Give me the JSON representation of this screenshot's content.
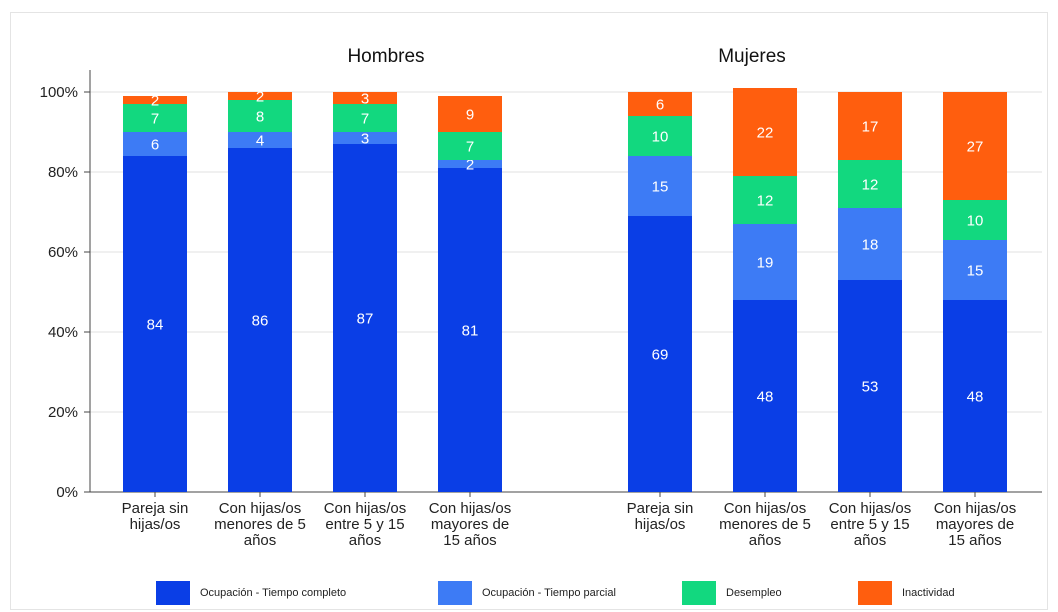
{
  "chart_data": {
    "type": "bar",
    "stacked": true,
    "percent": true,
    "ylim": [
      0,
      100
    ],
    "yticks": [
      "0%",
      "20%",
      "40%",
      "60%",
      "80%",
      "100%"
    ],
    "grid": true,
    "legend_position": "bottom",
    "panels": [
      {
        "title": "Hombres",
        "categories": [
          [
            "Pareja sin",
            "hijas/os"
          ],
          [
            "Con hijas/os",
            "menores de 5",
            "años"
          ],
          [
            "Con hijas/os",
            "entre 5 y 15",
            "años"
          ],
          [
            "Con hijas/os",
            "mayores de",
            "15 años"
          ]
        ],
        "series": [
          {
            "name": "Ocupación - Tiempo completo",
            "values": [
              84,
              86,
              87,
              81
            ]
          },
          {
            "name": "Ocupación - Tiempo parcial",
            "values": [
              6,
              4,
              3,
              2
            ]
          },
          {
            "name": "Desempleo",
            "values": [
              7,
              8,
              7,
              7
            ]
          },
          {
            "name": "Inactividad",
            "values": [
              2,
              2,
              3,
              9
            ]
          }
        ]
      },
      {
        "title": "Mujeres",
        "categories": [
          [
            "Pareja sin",
            "hijas/os"
          ],
          [
            "Con hijas/os",
            "menores de 5",
            "años"
          ],
          [
            "Con hijas/os",
            "entre 5 y 15",
            "años"
          ],
          [
            "Con hijas/os",
            "mayores de",
            "15 años"
          ]
        ],
        "series": [
          {
            "name": "Ocupación - Tiempo completo",
            "values": [
              69,
              48,
              53,
              48
            ]
          },
          {
            "name": "Ocupación - Tiempo parcial",
            "values": [
              15,
              19,
              18,
              15
            ]
          },
          {
            "name": "Desempleo",
            "values": [
              10,
              12,
              12,
              10
            ]
          },
          {
            "name": "Inactividad",
            "values": [
              6,
              22,
              17,
              27
            ]
          }
        ]
      }
    ],
    "colors": [
      "#0a3ee6",
      "#3d7bf5",
      "#12d87f",
      "#ff5e0e"
    ]
  }
}
